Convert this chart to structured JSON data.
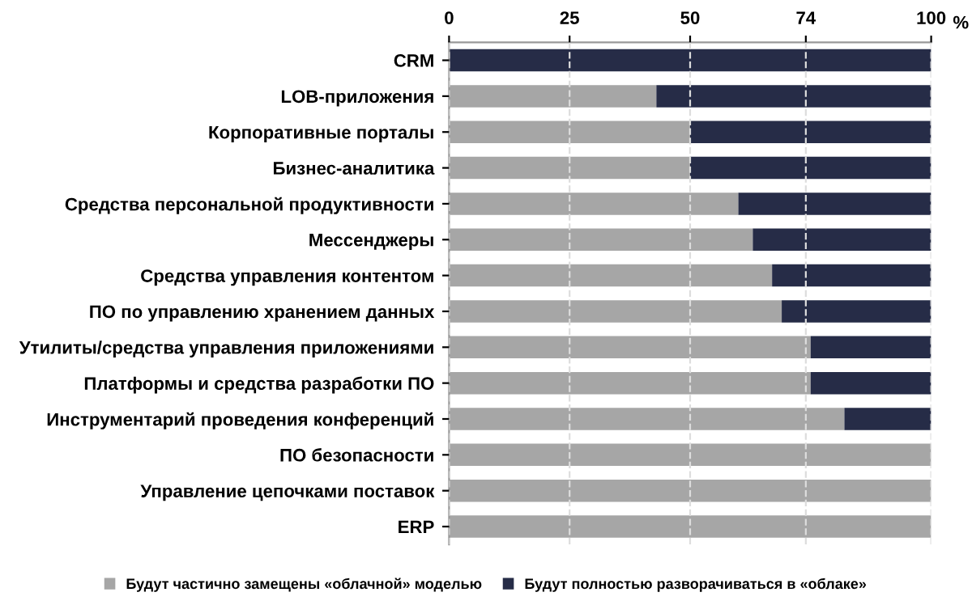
{
  "chart_data": {
    "type": "bar",
    "orientation": "horizontal",
    "stacked": true,
    "xlabel": "%",
    "categories": [
      "CRM",
      "LOB-приложения",
      "Корпоративные порталы",
      "Бизнес-аналитика",
      "Средства персональной продуктивности",
      "Мессенджеры",
      "Средства управления контентом",
      "ПО по управлению хранением данных",
      "Утилиты/средства управления приложениями",
      "Платформы и средства разработки ПО",
      "Инструментарий проведения конференций",
      "ПО безопасности",
      "Управление цепочками поставок",
      "ERP"
    ],
    "series": [
      {
        "name": "Будут частично замещены «облачной» моделью",
        "color": "#a6a6a6",
        "values": [
          0,
          43,
          50,
          50,
          60,
          63,
          67,
          69,
          75,
          75,
          82,
          100,
          100,
          100
        ]
      },
      {
        "name": "Будут полностью разворачиваться в «облаке»",
        "color": "#262c47",
        "values": [
          100,
          57,
          50,
          50,
          40,
          37,
          33,
          31,
          25,
          25,
          18,
          0,
          0,
          0
        ]
      }
    ],
    "xlim": [
      0,
      100
    ],
    "xticks": [
      0,
      25,
      50,
      74,
      100
    ],
    "grid": "x",
    "legend": "bottom"
  }
}
